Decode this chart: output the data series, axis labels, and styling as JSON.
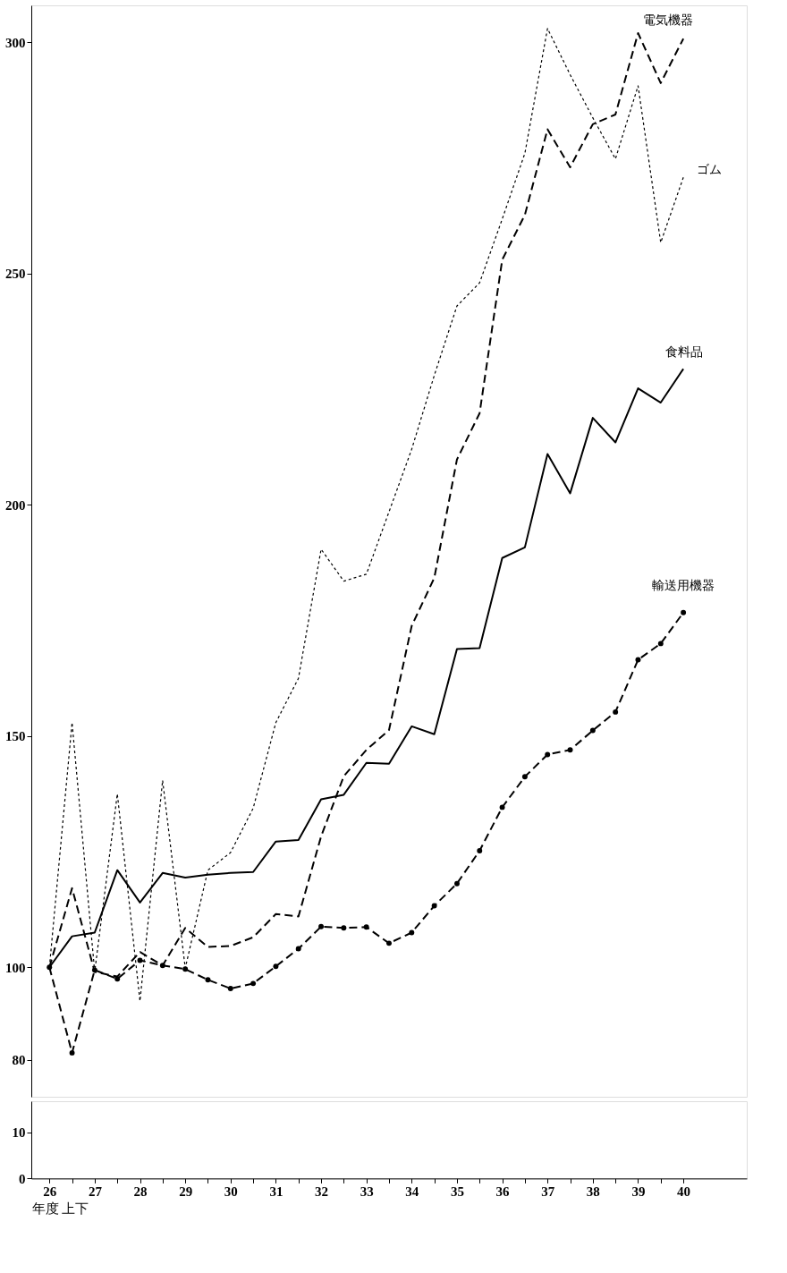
{
  "chart_data": [
    {
      "type": "line",
      "x": [
        26,
        26.5,
        27,
        27.5,
        28,
        28.5,
        29,
        29.5,
        30,
        30.5,
        31,
        31.5,
        32,
        32.5,
        33,
        33.5,
        34,
        34.5,
        35,
        35.5,
        36,
        36.5,
        37,
        37.5,
        38,
        38.5,
        39,
        39.5,
        40
      ],
      "xlim": [
        25.6,
        41.4
      ],
      "ylim": [
        72,
        308
      ],
      "yticks": [
        80,
        100,
        150,
        200,
        250,
        300
      ],
      "tick_labels": "y",
      "grid": false,
      "legend": false,
      "series": [
        {
          "name": "電気機器",
          "color": "#000000",
          "line_style": "dashed",
          "marker": "none",
          "values": [
            100,
            117.1,
            99,
            98,
            103.3,
            100.4,
            108.5,
            104.4,
            104.6,
            106.5,
            111.5,
            111,
            128.3,
            141.3,
            147,
            151.3,
            173.8,
            184.2,
            209.8,
            219.8,
            253,
            262.7,
            281.2,
            273,
            282.3,
            284.4,
            302,
            291.2,
            300.8
          ]
        },
        {
          "name": "ゴム",
          "color": "#000000",
          "line_style": "dotted",
          "marker": "none",
          "values": [
            100,
            152.9,
            99,
            137.5,
            92.7,
            140.4,
            99.8,
            121,
            124.8,
            134.4,
            152.9,
            162.5,
            190.4,
            183.5,
            185,
            198.5,
            212,
            228,
            243,
            248,
            261.8,
            276,
            303,
            293,
            283.7,
            274.8,
            290.6,
            256.7,
            270.8
          ]
        },
        {
          "name": "食料品",
          "color": "#000000",
          "line_style": "solid",
          "marker": "none",
          "values": [
            100,
            106.7,
            107.5,
            121,
            114,
            120.4,
            119.4,
            120,
            120.4,
            120.6,
            127.2,
            127.5,
            136.3,
            137.3,
            144.2,
            144,
            152.1,
            150.4,
            168.8,
            169,
            188.5,
            190.8,
            211,
            202.5,
            218.8,
            213.5,
            225.2,
            222.1,
            229.4
          ]
        },
        {
          "name": "輸送用機器",
          "color": "#000000",
          "line_style": "dashed",
          "marker": "circle",
          "values": [
            100,
            81.5,
            99.4,
            97.5,
            101.5,
            100.4,
            99.6,
            97.3,
            95.4,
            96.5,
            100.2,
            104,
            108.8,
            108.5,
            108.7,
            105.2,
            107.5,
            113.3,
            118.1,
            125.2,
            134.6,
            141.2,
            146,
            147,
            151.2,
            155.2,
            166.5,
            170,
            176.7
          ]
        }
      ]
    },
    {
      "type": "line",
      "xlim": [
        25.6,
        41.4
      ],
      "ylim": [
        0,
        16.7
      ],
      "yticks": [
        0,
        10
      ],
      "xlabel": "年度 上下",
      "xticks": [
        26,
        {
          "value": 26.5,
          "label": null
        },
        27,
        {
          "value": 27.5,
          "label": null
        },
        28,
        {
          "value": 28.5,
          "label": null
        },
        29,
        {
          "value": 29.5,
          "label": null
        },
        30,
        {
          "value": 30.5,
          "label": null
        },
        31,
        {
          "value": 31.5,
          "label": null
        },
        32,
        {
          "value": 32.5,
          "label": null
        },
        33,
        {
          "value": 33.5,
          "label": null
        },
        34,
        {
          "value": 34.5,
          "label": null
        },
        35,
        {
          "value": 35.5,
          "label": null
        },
        36,
        {
          "value": 36.5,
          "label": null
        },
        37,
        {
          "value": 37.5,
          "label": null
        },
        38,
        {
          "value": 38.5,
          "label": null
        },
        39,
        {
          "value": 39.5,
          "label": null
        },
        40
      ],
      "grid": false
    }
  ]
}
